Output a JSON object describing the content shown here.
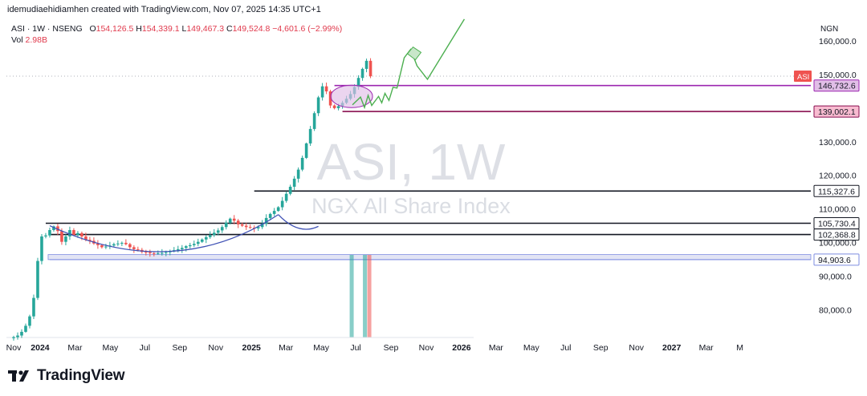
{
  "header": {
    "attribution": "idemudiaehidiamhen created with TradingView.com, Nov 07, 2025 14:35 UTC+1"
  },
  "legend": {
    "symbol": "ASI · 1W · NSENG",
    "o_label": "O",
    "o": "154,126.5",
    "h_label": "H",
    "h": "154,339.1",
    "l_label": "L",
    "l": "149,467.3",
    "c_label": "C",
    "c": "149,524.8",
    "change": "−4,601.6 (−2.99%)",
    "vol_label": "Vol",
    "vol": "2.98B"
  },
  "watermark": {
    "title": "ASI, 1W",
    "subtitle": "NGX All Share Index"
  },
  "footer": {
    "brand": "TradingView"
  },
  "colors": {
    "up": "#26a69a",
    "down": "#ef5350",
    "purple": "#9c27b0",
    "maroon": "#880e4f",
    "band": "#7e8ce0",
    "arrow": "#4caf50",
    "curve": "#3f51b5"
  },
  "chart_data": {
    "type": "candlestick",
    "currency": "NGN",
    "ylim": [
      71000,
      166000
    ],
    "x_ticks": [
      {
        "label": "Nov",
        "w": 0
      },
      {
        "label": "2024",
        "w": 6.6
      },
      {
        "label": "Mar",
        "w": 15.3
      },
      {
        "label": "May",
        "w": 24.1
      },
      {
        "label": "Jul",
        "w": 32.7
      },
      {
        "label": "Sep",
        "w": 41.4
      },
      {
        "label": "Nov",
        "w": 50.4
      },
      {
        "label": "2025",
        "w": 59.3
      },
      {
        "label": "Mar",
        "w": 67.9
      },
      {
        "label": "May",
        "w": 76.7
      },
      {
        "label": "Jul",
        "w": 85.3
      },
      {
        "label": "Sep",
        "w": 94.1
      },
      {
        "label": "Nov",
        "w": 102.9
      },
      {
        "label": "2026",
        "w": 111.7
      },
      {
        "label": "Mar",
        "w": 120.3
      },
      {
        "label": "May",
        "w": 129.1
      },
      {
        "label": "Jul",
        "w": 137.7
      },
      {
        "label": "Sep",
        "w": 146.4
      },
      {
        "label": "Nov",
        "w": 155.3
      },
      {
        "label": "2027",
        "w": 164.1
      },
      {
        "label": "Mar",
        "w": 172.7
      },
      {
        "label": "M",
        "w": 181.1
      }
    ],
    "y_ticks": [
      80000,
      90000,
      100000,
      110000,
      120000,
      130000,
      140000,
      150000,
      160000
    ],
    "closes": [
      71800,
      72300,
      73400,
      75200,
      78000,
      83500,
      94500,
      101800,
      102100,
      103700,
      104800,
      103400,
      100200,
      101800,
      103700,
      102200,
      102800,
      101800,
      100800,
      100500,
      99700,
      99200,
      98600,
      98800,
      99100,
      99500,
      99700,
      99900,
      99500,
      98600,
      98000,
      97800,
      97200,
      97100,
      96800,
      96700,
      96800,
      96900,
      97100,
      97400,
      97700,
      98000,
      98400,
      98900,
      99200,
      99600,
      100200,
      100900,
      101600,
      102200,
      102900,
      103600,
      104600,
      105900,
      107100,
      106500,
      105400,
      105000,
      104600,
      104400,
      104200,
      104600,
      105600,
      107300,
      108500,
      109400,
      110500,
      112400,
      114500,
      116600,
      119000,
      121700,
      125200,
      129500,
      133800,
      138500,
      143200,
      146500,
      145000,
      140800,
      140000,
      140600,
      141600,
      142800,
      144200,
      146300,
      149000,
      151700,
      154100,
      149500
    ],
    "levels": [
      {
        "label": "146,732.6",
        "value": 146732.6,
        "color": "purple",
        "from_w": 80
      },
      {
        "label": "139,002.1",
        "value": 139002.1,
        "color": "maroon",
        "from_w": 82
      },
      {
        "label": "115,327.6",
        "value": 115327.6,
        "color": "black",
        "from_w": 60
      },
      {
        "label": "105,730.4",
        "value": 105730.4,
        "color": "black",
        "from_w": 8
      },
      {
        "label": "102,368.8",
        "value": 102368.8,
        "color": "black",
        "from_w": 9
      },
      {
        "label": "94,903.6",
        "value": 94903.6,
        "color": "band",
        "from_w": 9
      }
    ],
    "zone": {
      "from": 94903.6,
      "to": 96400
    },
    "current": {
      "symbol": "ASI",
      "value": 149524.8
    }
  }
}
